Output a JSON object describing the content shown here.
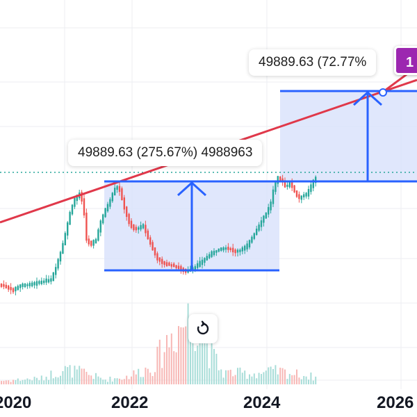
{
  "x_axis": {
    "labels": [
      "2020",
      "2022",
      "2024",
      "2026"
    ]
  },
  "measure_upper": {
    "label": "49889.63 (72.77%"
  },
  "measure_lower": {
    "label": "49889.63 (275.67%) 4988963"
  },
  "badge": {
    "label": "1"
  },
  "reset": {
    "icon": "reset-icon"
  },
  "colors": {
    "up": "#26a69a",
    "down": "#ef5350",
    "trendline": "#e0384a",
    "measure_line": "#2962ff",
    "measure_fill": "#dbe3fb",
    "badge": "#9c27b0",
    "price_line": "#26a69a"
  }
}
